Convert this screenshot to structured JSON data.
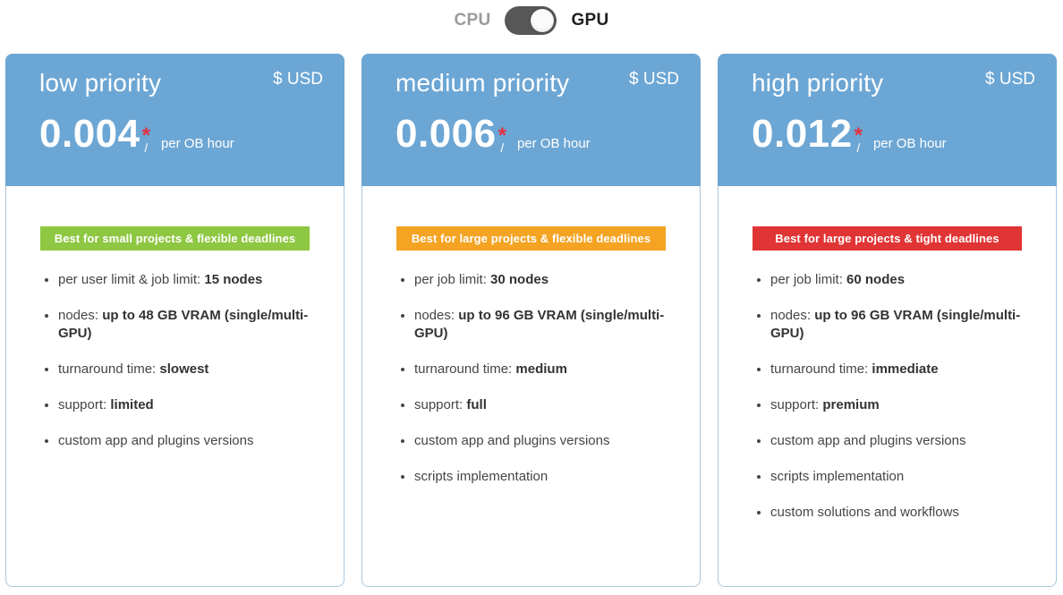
{
  "toggle": {
    "left_label": "CPU",
    "right_label": "GPU",
    "selected": "GPU",
    "track_color": "#575757"
  },
  "colors": {
    "header_blue": "#6ca6d4",
    "card_border": "#abc7de",
    "star_red": "#e23140",
    "badge_green": "#8ec742",
    "badge_orange": "#f4a322",
    "badge_red": "#e13434"
  },
  "cards": [
    {
      "title": "low priority",
      "currency": "$ USD",
      "price": "0.004",
      "asterisk": "*",
      "slash": "/",
      "per_label": "per OB hour",
      "badge": {
        "label": "Best for small projects & flexible deadlines",
        "color": "#8ec742"
      },
      "features": [
        {
          "text": "per user limit & job limit: ",
          "bold": "15 nodes"
        },
        {
          "text": "nodes: ",
          "bold": "up to 48 GB VRAM (single/multi-GPU)"
        },
        {
          "text": "turnaround time: ",
          "bold": "slowest"
        },
        {
          "text": "support: ",
          "bold": "limited"
        },
        {
          "text": "custom app and plugins versions",
          "bold": ""
        }
      ]
    },
    {
      "title": "medium priority",
      "currency": "$ USD",
      "price": "0.006",
      "asterisk": "*",
      "slash": "/",
      "per_label": "per OB hour",
      "badge": {
        "label": "Best for large projects & flexible deadlines",
        "color": "#f4a322"
      },
      "features": [
        {
          "text": "per job limit: ",
          "bold": "30 nodes"
        },
        {
          "text": "nodes: ",
          "bold": "up to 96 GB VRAM (single/multi-GPU)"
        },
        {
          "text": "turnaround time: ",
          "bold": "medium"
        },
        {
          "text": "support: ",
          "bold": "full"
        },
        {
          "text": "custom app and plugins versions",
          "bold": ""
        },
        {
          "text": "scripts implementation",
          "bold": ""
        }
      ]
    },
    {
      "title": "high priority",
      "currency": "$ USD",
      "price": "0.012",
      "asterisk": "*",
      "slash": "/",
      "per_label": "per OB hour",
      "badge": {
        "label": "Best for large projects & tight deadlines",
        "color": "#e13434"
      },
      "features": [
        {
          "text": "per job limit: ",
          "bold": "60 nodes"
        },
        {
          "text": "nodes: ",
          "bold": "up to 96 GB VRAM (single/multi-GPU)"
        },
        {
          "text": "turnaround time: ",
          "bold": "immediate"
        },
        {
          "text": "support: ",
          "bold": "premium"
        },
        {
          "text": "custom app and plugins versions",
          "bold": ""
        },
        {
          "text": "scripts implementation",
          "bold": ""
        },
        {
          "text": "custom solutions and workflows",
          "bold": ""
        }
      ]
    }
  ]
}
